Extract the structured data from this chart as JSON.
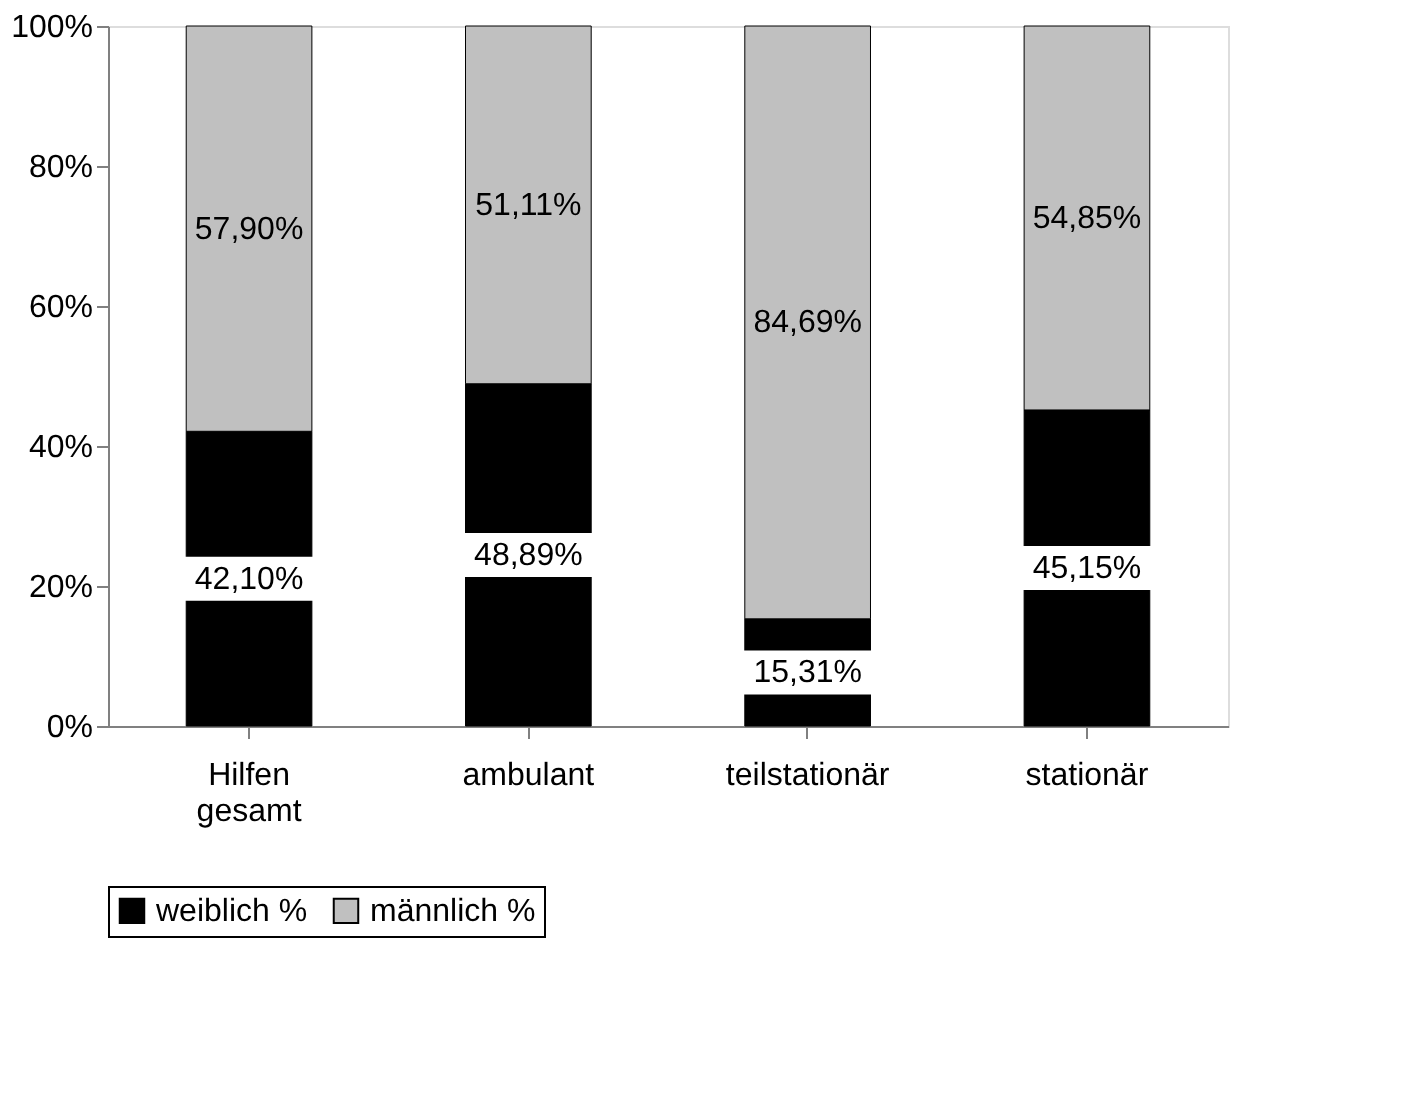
{
  "chart_data": {
    "type": "bar",
    "stacked": true,
    "categories": [
      "Hilfen gesamt",
      "ambulant",
      "teilstationär",
      "stationär"
    ],
    "series": [
      {
        "name": "weiblich %",
        "color": "#000000",
        "values": [
          42.1,
          48.89,
          15.31,
          45.15
        ],
        "value_labels": [
          "42,10%",
          "48,89%",
          "15,31%",
          "45,15%"
        ]
      },
      {
        "name": "männlich %",
        "color": "#c0c0c0",
        "values": [
          57.9,
          51.11,
          84.69,
          54.85
        ],
        "value_labels": [
          "57,90%",
          "51,11%",
          "84,69%",
          "54,85%"
        ]
      }
    ],
    "ylim": [
      0,
      100
    ],
    "yticks": [
      {
        "value": 0,
        "label": "0%"
      },
      {
        "value": 20,
        "label": "20%"
      },
      {
        "value": 40,
        "label": "40%"
      },
      {
        "value": 60,
        "label": "60%"
      },
      {
        "value": 80,
        "label": "80%"
      },
      {
        "value": 100,
        "label": "100%"
      }
    ],
    "grid": false,
    "legend": "bottom"
  }
}
